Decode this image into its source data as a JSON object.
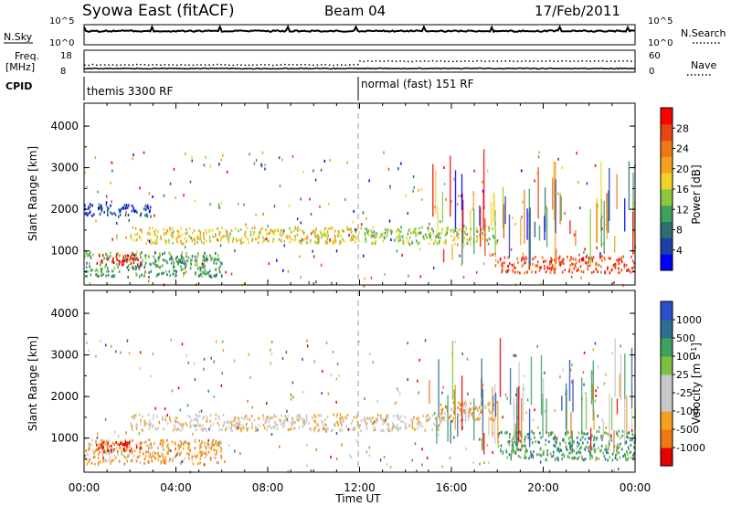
{
  "header": {
    "title": "Syowa East (fitACF)",
    "beam": "Beam 04",
    "date": "17/Feb/2011"
  },
  "top_panels": {
    "nsky_label": "N.Sky",
    "nsearch_label": "N.Search",
    "nsky_ticks": [
      "10^5",
      "10^0"
    ],
    "nsearch_ticks": [
      "10^5",
      "10^0"
    ],
    "freq_label_1": "Freq.",
    "freq_label_2": "[MHz]",
    "freq_ticks": [
      "18",
      "8"
    ],
    "nave_label": "Nave",
    "nave_ticks": [
      "60",
      "0"
    ],
    "cpid_label": "CPID",
    "cpid_segments": [
      {
        "label": "themis 3300 RF",
        "start_hour": 0
      },
      {
        "label": "normal (fast) 151 RF",
        "start_hour": 12
      }
    ]
  },
  "chart_data": [
    {
      "type": "heatmap",
      "title": "Power",
      "ylabel": "Slant Range [km]",
      "xlabel": "",
      "xlim_hours": [
        0,
        24
      ],
      "ylim": [
        180,
        4550
      ],
      "yticks": [
        "1000",
        "2000",
        "3000",
        "4000"
      ],
      "colorbar_label": "Power [dB]",
      "colorbar_ticks": [
        "28",
        "24",
        "20",
        "16",
        "12",
        "8",
        "4"
      ],
      "colors": [
        "#0000ff",
        "#1e3fa8",
        "#2f6e6e",
        "#3fa060",
        "#8cc83c",
        "#f0d22a",
        "#f5a01e",
        "#f07814",
        "#e64614",
        "#ff0000"
      ],
      "regions": [
        {
          "t0": 0.0,
          "t1": 3.0,
          "r0": 1850,
          "r1": 2150,
          "level": 1
        },
        {
          "t0": 0.0,
          "t1": 6.0,
          "r0": 400,
          "r1": 1000,
          "level": 3
        },
        {
          "t0": 0.5,
          "t1": 2.5,
          "r0": 700,
          "r1": 950,
          "level": 9
        },
        {
          "t0": 2.0,
          "t1": 12.0,
          "r0": 1200,
          "r1": 1600,
          "level": 5
        },
        {
          "t0": 12.0,
          "t1": 18.0,
          "r0": 1200,
          "r1": 1600,
          "level": 4
        },
        {
          "t0": 18.0,
          "t1": 24.0,
          "r0": 500,
          "r1": 900,
          "level": 8
        }
      ]
    },
    {
      "type": "heatmap",
      "title": "Velocity",
      "ylabel": "Slant Range [km]",
      "xlabel": "Time UT",
      "xlim_hours": [
        0,
        24
      ],
      "ylim": [
        180,
        4550
      ],
      "xticks": [
        "00:00",
        "04:00",
        "08:00",
        "12:00",
        "16:00",
        "20:00",
        "00:00"
      ],
      "yticks": [
        "1000",
        "2000",
        "3000",
        "4000"
      ],
      "colorbar_label": "Velocity [m s",
      "colorbar_label_sup": "-1",
      "colorbar_label_end": "]",
      "colorbar_ticks": [
        "1000",
        "500",
        "100",
        "25",
        "-25",
        "-100",
        "-500",
        "-1000"
      ],
      "colors": [
        "#e60000",
        "#f07814",
        "#f5a01e",
        "#c8c8c8",
        "#c8c8c8",
        "#7cc040",
        "#3fa060",
        "#2f6e8c",
        "#2a4fc8"
      ],
      "regions": [
        {
          "t0": 0.0,
          "t1": 6.0,
          "r0": 400,
          "r1": 1000,
          "level": 2
        },
        {
          "t0": 0.5,
          "t1": 2.5,
          "r0": 700,
          "r1": 950,
          "level": 0
        },
        {
          "t0": 2.0,
          "t1": 15.5,
          "r0": 1200,
          "r1": 1600,
          "level": 3
        },
        {
          "t0": 15.5,
          "t1": 18.0,
          "r0": 1450,
          "r1": 1900,
          "level": 2
        },
        {
          "t0": 18.0,
          "t1": 24.0,
          "r0": 500,
          "r1": 1200,
          "level": 6
        }
      ]
    }
  ]
}
